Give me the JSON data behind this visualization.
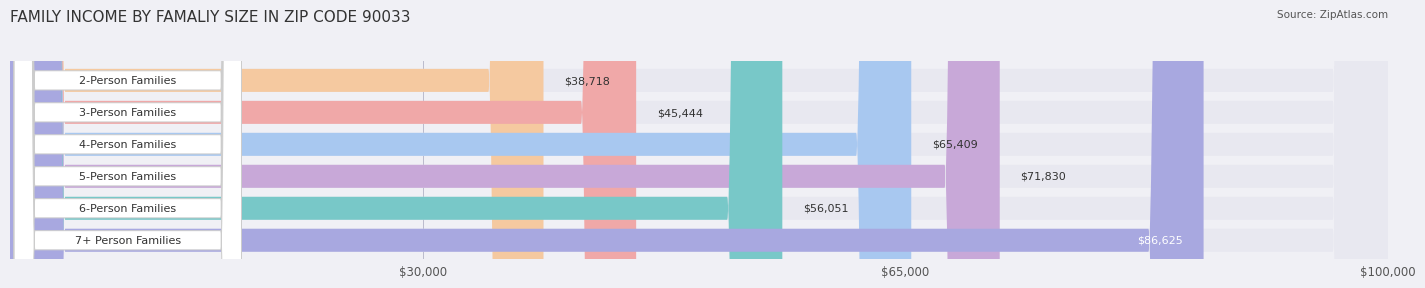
{
  "title": "FAMILY INCOME BY FAMALIY SIZE IN ZIP CODE 90033",
  "source": "Source: ZipAtlas.com",
  "categories": [
    "2-Person Families",
    "3-Person Families",
    "4-Person Families",
    "5-Person Families",
    "6-Person Families",
    "7+ Person Families"
  ],
  "values": [
    38718,
    45444,
    65409,
    71830,
    56051,
    86625
  ],
  "labels": [
    "$38,718",
    "$45,444",
    "$65,409",
    "$71,830",
    "$56,051",
    "$86,625"
  ],
  "bar_colors": [
    "#f5c9a0",
    "#f0a8a8",
    "#a8c8f0",
    "#c8a8d8",
    "#78c8c8",
    "#a8a8e0"
  ],
  "xlim": [
    0,
    100000
  ],
  "xticks": [
    0,
    30000,
    65000,
    100000
  ],
  "xticklabels": [
    "",
    "$30,000",
    "$65,000",
    "$100,000"
  ],
  "background_color": "#f0f0f5",
  "bar_background": "#e8e8f0",
  "bar_height": 0.72,
  "title_fontsize": 11,
  "category_fontsize": 8.0,
  "value_label_fontsize": 8.0
}
